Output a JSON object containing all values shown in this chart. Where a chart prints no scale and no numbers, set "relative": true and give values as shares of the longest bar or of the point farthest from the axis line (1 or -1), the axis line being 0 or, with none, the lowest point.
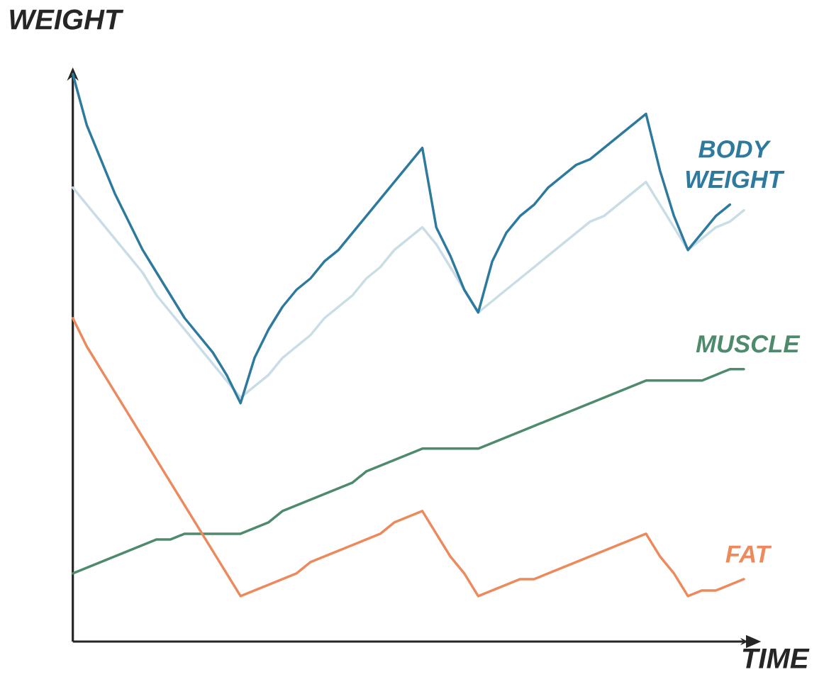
{
  "chart_data": {
    "type": "line",
    "xlabel": "TIME",
    "ylabel": "WEIGHT",
    "relative": true,
    "marker": "none",
    "line_style": "solid",
    "categories": [
      null,
      null,
      null,
      null,
      null,
      null,
      null,
      null,
      null,
      null,
      null,
      null,
      null,
      null,
      null,
      null,
      null,
      null,
      null,
      null,
      null,
      null,
      null,
      null,
      null,
      null,
      null,
      null,
      null,
      null,
      null,
      null,
      null,
      null,
      null,
      null,
      null,
      null,
      null,
      null,
      null,
      null,
      null,
      null,
      null,
      null,
      null,
      null,
      null
    ],
    "series": [
      {
        "color": "#c9dde6",
        "values": [
          0.8,
          0.77,
          0.74,
          0.71,
          0.68,
          0.65,
          0.61,
          0.58,
          0.55,
          0.52,
          0.49,
          0.46,
          0.43,
          0.45,
          0.47,
          0.5,
          0.52,
          0.54,
          0.57,
          0.59,
          0.61,
          0.64,
          0.66,
          0.69,
          0.71,
          0.73,
          0.7,
          0.66,
          0.62,
          0.58,
          0.6,
          0.62,
          0.64,
          0.66,
          0.68,
          0.7,
          0.72,
          0.74,
          0.75,
          0.77,
          0.79,
          0.81,
          0.77,
          0.73,
          0.69,
          0.71,
          0.73,
          0.74,
          0.76
        ]
      },
      {
        "name": "BODY WEIGHT",
        "color": "#2e7a9e",
        "values": [
          1.0,
          0.91,
          0.85,
          0.79,
          0.74,
          0.69,
          0.65,
          0.61,
          0.57,
          0.54,
          0.51,
          0.47,
          0.42,
          0.5,
          0.55,
          0.59,
          0.62,
          0.64,
          0.67,
          0.69,
          0.72,
          0.75,
          0.78,
          0.81,
          0.84,
          0.87,
          0.73,
          0.68,
          0.62,
          0.58,
          0.67,
          0.72,
          0.75,
          0.77,
          0.8,
          0.82,
          0.84,
          0.85,
          0.87,
          0.89,
          0.91,
          0.93,
          0.83,
          0.75,
          0.69,
          0.72,
          0.75,
          0.77,
          null
        ]
      },
      {
        "name": "MUSCLE",
        "color": "#4e8a6c",
        "values": [
          0.12,
          0.13,
          0.14,
          0.15,
          0.16,
          0.17,
          0.18,
          0.18,
          0.19,
          0.19,
          0.19,
          0.19,
          0.19,
          0.2,
          0.21,
          0.23,
          0.24,
          0.25,
          0.26,
          0.27,
          0.28,
          0.3,
          0.31,
          0.32,
          0.33,
          0.34,
          0.34,
          0.34,
          0.34,
          0.34,
          0.35,
          0.36,
          0.37,
          0.38,
          0.39,
          0.4,
          0.41,
          0.42,
          0.43,
          0.44,
          0.45,
          0.46,
          0.46,
          0.46,
          0.46,
          0.46,
          0.47,
          0.48,
          0.48
        ]
      },
      {
        "name": "FAT",
        "color": "#ec8a5d",
        "values": [
          0.57,
          0.52,
          0.48,
          0.44,
          0.4,
          0.36,
          0.32,
          0.28,
          0.24,
          0.2,
          0.16,
          0.12,
          0.08,
          0.09,
          0.1,
          0.11,
          0.12,
          0.14,
          0.15,
          0.16,
          0.17,
          0.18,
          0.19,
          0.21,
          0.22,
          0.23,
          0.19,
          0.15,
          0.12,
          0.08,
          0.09,
          0.1,
          0.11,
          0.11,
          0.12,
          0.13,
          0.14,
          0.15,
          0.16,
          0.17,
          0.18,
          0.19,
          0.15,
          0.12,
          0.08,
          0.09,
          0.09,
          0.1,
          0.11
        ]
      }
    ]
  }
}
